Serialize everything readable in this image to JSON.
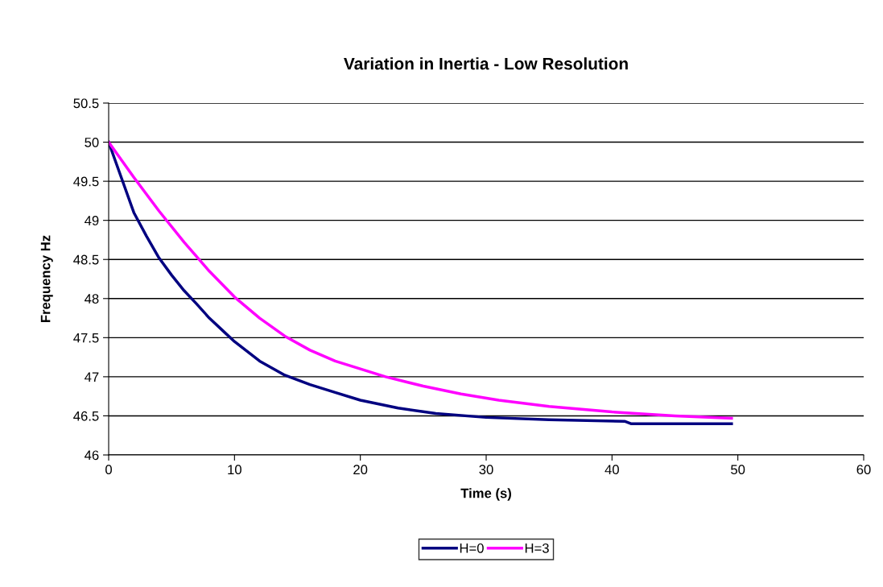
{
  "chart_data": {
    "type": "line",
    "title": "Variation in Inertia - Low Resolution",
    "xlabel": "Time (s)",
    "ylabel": "Frequency Hz",
    "series": [
      {
        "name": "H=0",
        "color": "#000080",
        "x": [
          0,
          1,
          2,
          3,
          4,
          5,
          6,
          7,
          8,
          9,
          10,
          12,
          14,
          16,
          18,
          20,
          23,
          26,
          30,
          35,
          41,
          41.5,
          49.5
        ],
        "values": [
          50,
          49.55,
          49.1,
          48.8,
          48.52,
          48.3,
          48.1,
          47.93,
          47.75,
          47.6,
          47.45,
          47.2,
          47.02,
          46.9,
          46.8,
          46.7,
          46.6,
          46.53,
          46.48,
          46.45,
          46.43,
          46.4,
          46.4
        ]
      },
      {
        "name": "H=3",
        "color": "#ff00ff",
        "x": [
          0,
          2,
          4,
          6,
          8,
          10,
          12,
          14,
          16,
          18,
          20,
          22,
          25,
          28,
          31,
          35,
          40,
          45,
          49.5
        ],
        "values": [
          50,
          49.55,
          49.12,
          48.72,
          48.35,
          48.02,
          47.75,
          47.52,
          47.34,
          47.2,
          47.1,
          47.0,
          46.88,
          46.78,
          46.7,
          46.62,
          46.55,
          46.5,
          46.47
        ]
      }
    ],
    "xlim": [
      0,
      60
    ],
    "xticks": [
      0,
      10,
      20,
      30,
      40,
      50,
      60
    ],
    "ylim": [
      46,
      50.5
    ],
    "yticks": [
      46,
      46.5,
      47,
      47.5,
      48,
      48.5,
      49,
      49.5,
      50,
      50.5
    ],
    "grid": "y",
    "legend": "bottom",
    "marker": "none",
    "line_style": "solid"
  }
}
